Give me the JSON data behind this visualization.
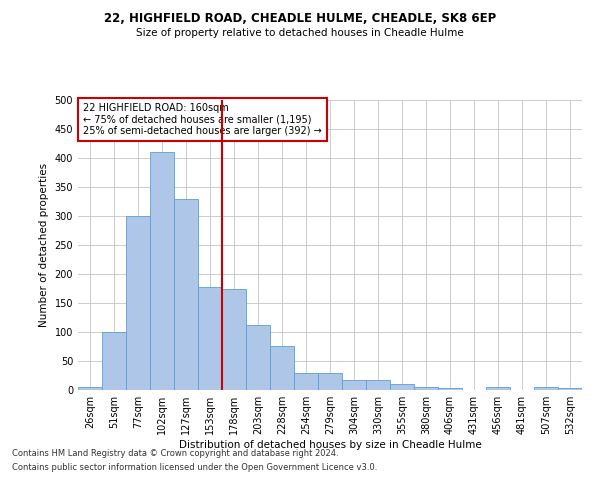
{
  "title": "22, HIGHFIELD ROAD, CHEADLE HULME, CHEADLE, SK8 6EP",
  "subtitle": "Size of property relative to detached houses in Cheadle Hulme",
  "xlabel": "Distribution of detached houses by size in Cheadle Hulme",
  "ylabel": "Number of detached properties",
  "bar_labels": [
    "26sqm",
    "51sqm",
    "77sqm",
    "102sqm",
    "127sqm",
    "153sqm",
    "178sqm",
    "203sqm",
    "228sqm",
    "254sqm",
    "279sqm",
    "304sqm",
    "330sqm",
    "355sqm",
    "380sqm",
    "406sqm",
    "431sqm",
    "456sqm",
    "481sqm",
    "507sqm",
    "532sqm"
  ],
  "bar_values": [
    5,
    100,
    300,
    410,
    330,
    178,
    175,
    112,
    76,
    30,
    30,
    18,
    18,
    10,
    6,
    4,
    0,
    5,
    0,
    5,
    3
  ],
  "bar_color": "#aec6e8",
  "bar_edge_color": "#5a9fd4",
  "vline_x": 5.5,
  "vline_color": "#cc0000",
  "annotation_text": "22 HIGHFIELD ROAD: 160sqm\n← 75% of detached houses are smaller (1,195)\n25% of semi-detached houses are larger (392) →",
  "annotation_box_color": "#ffffff",
  "annotation_box_edge_color": "#cc0000",
  "footer_line1": "Contains HM Land Registry data © Crown copyright and database right 2024.",
  "footer_line2": "Contains public sector information licensed under the Open Government Licence v3.0.",
  "background_color": "#ffffff",
  "grid_color": "#cccccc",
  "ylim": [
    0,
    500
  ],
  "yticks": [
    0,
    50,
    100,
    150,
    200,
    250,
    300,
    350,
    400,
    450,
    500
  ],
  "figsize": [
    6.0,
    5.0
  ],
  "dpi": 100
}
